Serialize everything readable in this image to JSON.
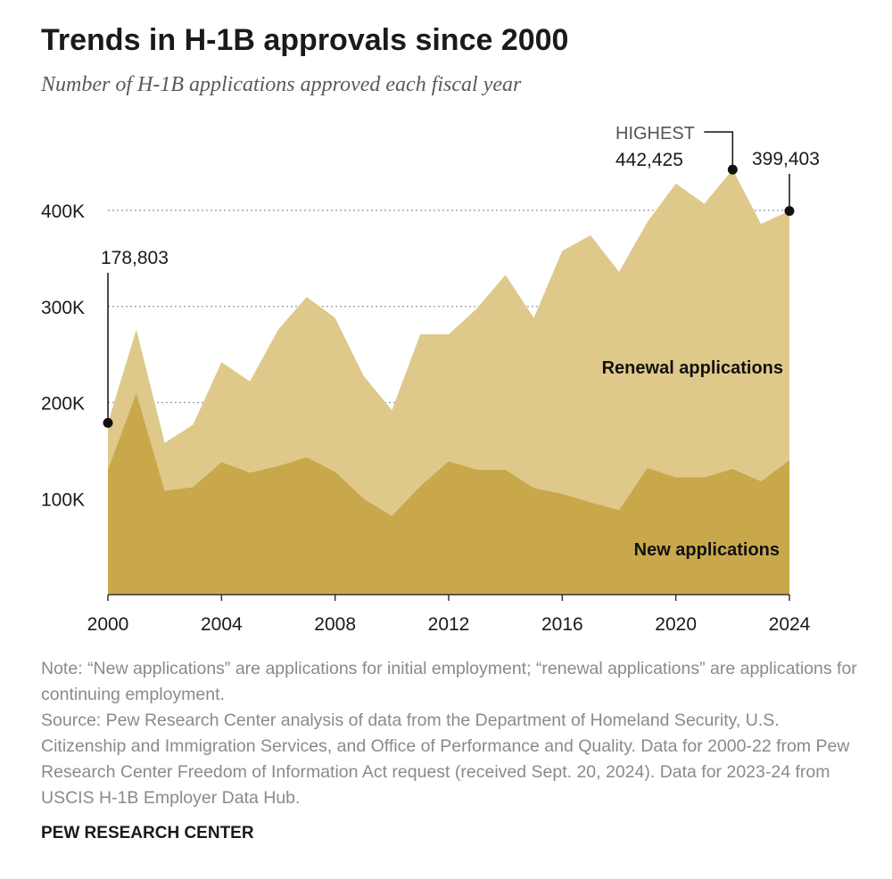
{
  "title": "Trends in H-1B approvals since 2000",
  "subtitle": "Number of H-1B applications approved each fiscal year",
  "note": "Note: “New applications” are applications for initial employment; “renewal applications” are applications for continuing employment.",
  "source": "Source: Pew Research Center analysis of data from the Department of Homeland Security, U.S. Citizenship and Immigration Services, and Office of Performance and Quality. Data for 2000-22 from Pew Research Center Freedom of Information Act request (received Sept. 20, 2024). Data for 2023-24 from USCIS H-1B Employer Data Hub.",
  "brand": "PEW RESEARCH CENTER",
  "colors": {
    "new": "#c9a84b",
    "renewal": "#dfc98a",
    "text": "#1a1a1a",
    "grid": "#999999"
  },
  "chart_data": {
    "type": "area",
    "stacked": true,
    "title": "Trends in H-1B approvals since 2000",
    "x": [
      2000,
      2001,
      2002,
      2003,
      2004,
      2005,
      2006,
      2007,
      2008,
      2009,
      2010,
      2011,
      2012,
      2013,
      2014,
      2015,
      2016,
      2017,
      2018,
      2019,
      2020,
      2021,
      2022,
      2023,
      2024
    ],
    "series": [
      {
        "name": "New applications",
        "label": "New applications",
        "values": [
          130000,
          210000,
          108000,
          112000,
          138000,
          127000,
          134000,
          143000,
          128000,
          100000,
          82000,
          113000,
          139000,
          130000,
          130000,
          111000,
          105000,
          96000,
          88000,
          132000,
          122000,
          122000,
          131000,
          118000,
          140000
        ]
      },
      {
        "name": "Renewal applications",
        "label": "Renewal applications",
        "values": [
          48803,
          66000,
          50000,
          65000,
          104000,
          95000,
          142000,
          167000,
          160000,
          128000,
          110000,
          158000,
          132000,
          168000,
          203000,
          177000,
          253000,
          278000,
          248000,
          256000,
          306000,
          285000,
          311425,
          268000,
          259403
        ]
      }
    ],
    "xticks": [
      2000,
      2004,
      2008,
      2012,
      2016,
      2020,
      2024
    ],
    "xtick_labels": [
      "2000",
      "2004",
      "2008",
      "2012",
      "2016",
      "2020",
      "2024"
    ],
    "yticks": [
      100000,
      200000,
      300000,
      400000
    ],
    "ytick_labels": [
      "100K",
      "200K",
      "300K",
      "400K"
    ],
    "ylim": [
      0,
      460000
    ],
    "xlim": [
      2000,
      2024
    ],
    "annotations": [
      {
        "x": 2000,
        "value": 178803,
        "label": "178,803"
      },
      {
        "x": 2022,
        "value": 442425,
        "label_top": "HIGHEST",
        "label": "442,425"
      },
      {
        "x": 2024,
        "value": 399403,
        "label": "399,403"
      }
    ]
  }
}
